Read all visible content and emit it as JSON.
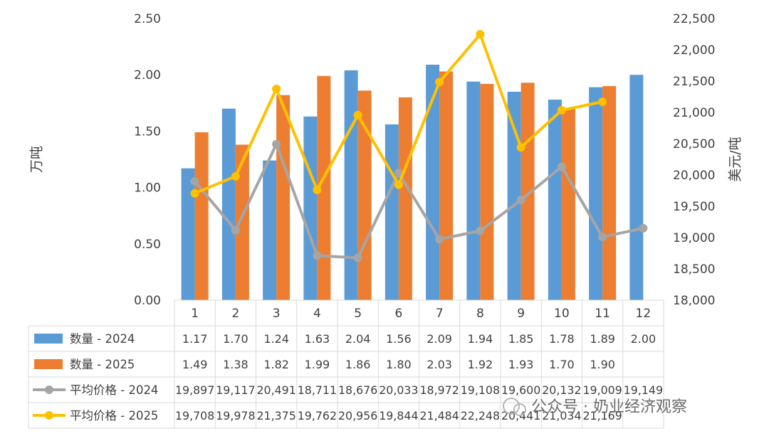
{
  "chart_data": {
    "type": "bar",
    "categories": [
      "1",
      "2",
      "3",
      "4",
      "5",
      "6",
      "7",
      "8",
      "9",
      "10",
      "11",
      "12"
    ],
    "series": [
      {
        "name": "数量 - 2024",
        "kind": "bar",
        "axis": "left",
        "color": "#5b9bd5",
        "values": [
          1.17,
          1.7,
          1.24,
          1.63,
          2.04,
          1.56,
          2.09,
          1.94,
          1.85,
          1.78,
          1.89,
          2.0
        ],
        "labels": [
          "1.17",
          "1.70",
          "1.24",
          "1.63",
          "2.04",
          "1.56",
          "2.09",
          "1.94",
          "1.85",
          "1.78",
          "1.89",
          "2.00"
        ]
      },
      {
        "name": "数量 - 2025",
        "kind": "bar",
        "axis": "left",
        "color": "#ed7d31",
        "values": [
          1.49,
          1.38,
          1.82,
          1.99,
          1.86,
          1.8,
          2.03,
          1.92,
          1.93,
          1.7,
          1.9,
          null
        ],
        "labels": [
          "1.49",
          "1.38",
          "1.82",
          "1.99",
          "1.86",
          "1.80",
          "2.03",
          "1.92",
          "1.93",
          "1.70",
          "1.90",
          ""
        ]
      },
      {
        "name": "平均价格 - 2024",
        "kind": "line",
        "axis": "right",
        "color": "#a5a5a5",
        "values": [
          19897,
          19117,
          20491,
          18711,
          18676,
          20033,
          18972,
          19108,
          19600,
          20132,
          19009,
          19149
        ],
        "labels": [
          "19,897",
          "19,117",
          "20,491",
          "18,711",
          "18,676",
          "20,033",
          "18,972",
          "19,108",
          "19,600",
          "20,132",
          "19,009",
          "19,149"
        ]
      },
      {
        "name": "平均价格 - 2025",
        "kind": "line",
        "axis": "right",
        "color": "#ffc000",
        "values": [
          19708,
          19978,
          21375,
          19762,
          20956,
          19844,
          21484,
          22248,
          20441,
          21034,
          21169,
          null
        ],
        "labels": [
          "19,708",
          "19,978",
          "21,375",
          "19,762",
          "20,956",
          "19,844",
          "21,484",
          "22,248",
          "20,441",
          "21,034",
          "21,169",
          ""
        ]
      }
    ],
    "y_left": {
      "label": "万吨",
      "range": [
        0,
        2.5
      ],
      "ticks": [
        {
          "v": 0,
          "t": "0.00"
        },
        {
          "v": 0.5,
          "t": "0.50"
        },
        {
          "v": 1,
          "t": "1.00"
        },
        {
          "v": 1.5,
          "t": "1.50"
        },
        {
          "v": 2,
          "t": "2.00"
        },
        {
          "v": 2.5,
          "t": "2.50"
        }
      ]
    },
    "y_right": {
      "label": "美元/吨",
      "range": [
        18000,
        22500
      ],
      "ticks": [
        {
          "v": 18000,
          "t": "18,000"
        },
        {
          "v": 18500,
          "t": "18,500"
        },
        {
          "v": 19000,
          "t": "19,000"
        },
        {
          "v": 19500,
          "t": "19,500"
        },
        {
          "v": 20000,
          "t": "20,000"
        },
        {
          "v": 20500,
          "t": "20,500"
        },
        {
          "v": 21000,
          "t": "21,000"
        },
        {
          "v": 21500,
          "t": "21,500"
        },
        {
          "v": 22000,
          "t": "22,000"
        },
        {
          "v": 22500,
          "t": "22,500"
        }
      ]
    },
    "grid": false,
    "legend": "data-table-below"
  },
  "watermark": {
    "text": "公众号 · 奶业经济观察"
  }
}
